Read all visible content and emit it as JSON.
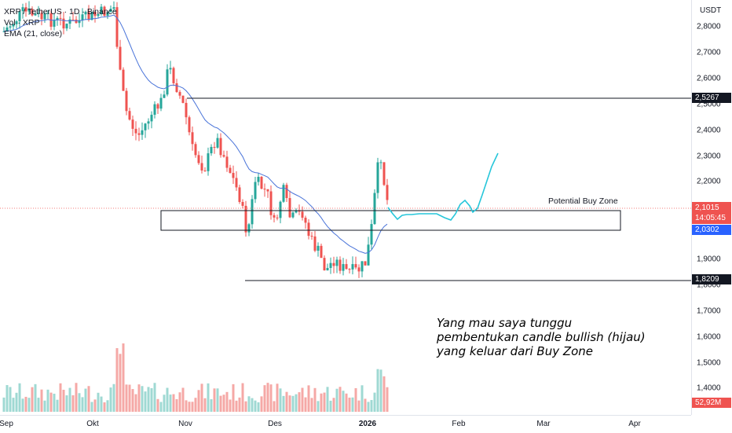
{
  "legend": {
    "symbol_line": "XRP / TetherUS · 1D · Binance",
    "volume_line": "Vol · XRP",
    "ema_line": "EMA (21, close)"
  },
  "price_axis": {
    "currency": "USDT",
    "ticks": [
      "2,8000",
      "2,7000",
      "2,6000",
      "2,5000",
      "2,4000",
      "2,3000",
      "2,2000",
      "1,9000",
      "1,8000",
      "1,7000",
      "1,6000",
      "1,5000",
      "1,4000"
    ],
    "tick_values": [
      2.8,
      2.7,
      2.6,
      2.5,
      2.4,
      2.3,
      2.2,
      1.9,
      1.8,
      1.7,
      1.6,
      1.5,
      1.4
    ],
    "tags": {
      "resistance": "2,5267",
      "last_price": "2,1015",
      "countdown": "14:05:45",
      "ema": "2,0302",
      "support": "1,8209",
      "volume": "52,92M"
    }
  },
  "time_axis": {
    "labels": [
      "Sep",
      "Okt",
      "Nov",
      "Des",
      "2026",
      "Feb",
      "Mar",
      "Apr"
    ]
  },
  "zone": {
    "label": "Potential Buy Zone",
    "top": 2.1,
    "bottom": 2.025,
    "resistance": 2.5267,
    "support": 1.8209
  },
  "note": {
    "line1": "Yang mau saya tunggu",
    "line2": "pembentukan candle bullish (hijau)",
    "line3": "yang keluar dari Buy Zone"
  },
  "colors": {
    "up": "#26a69a",
    "down": "#ef5350",
    "ema": "#2962ff",
    "projection": "#00bcd4",
    "price_tag": "#ef5350",
    "ema_tag": "#2962ff",
    "level_tag": "#131722"
  }
}
